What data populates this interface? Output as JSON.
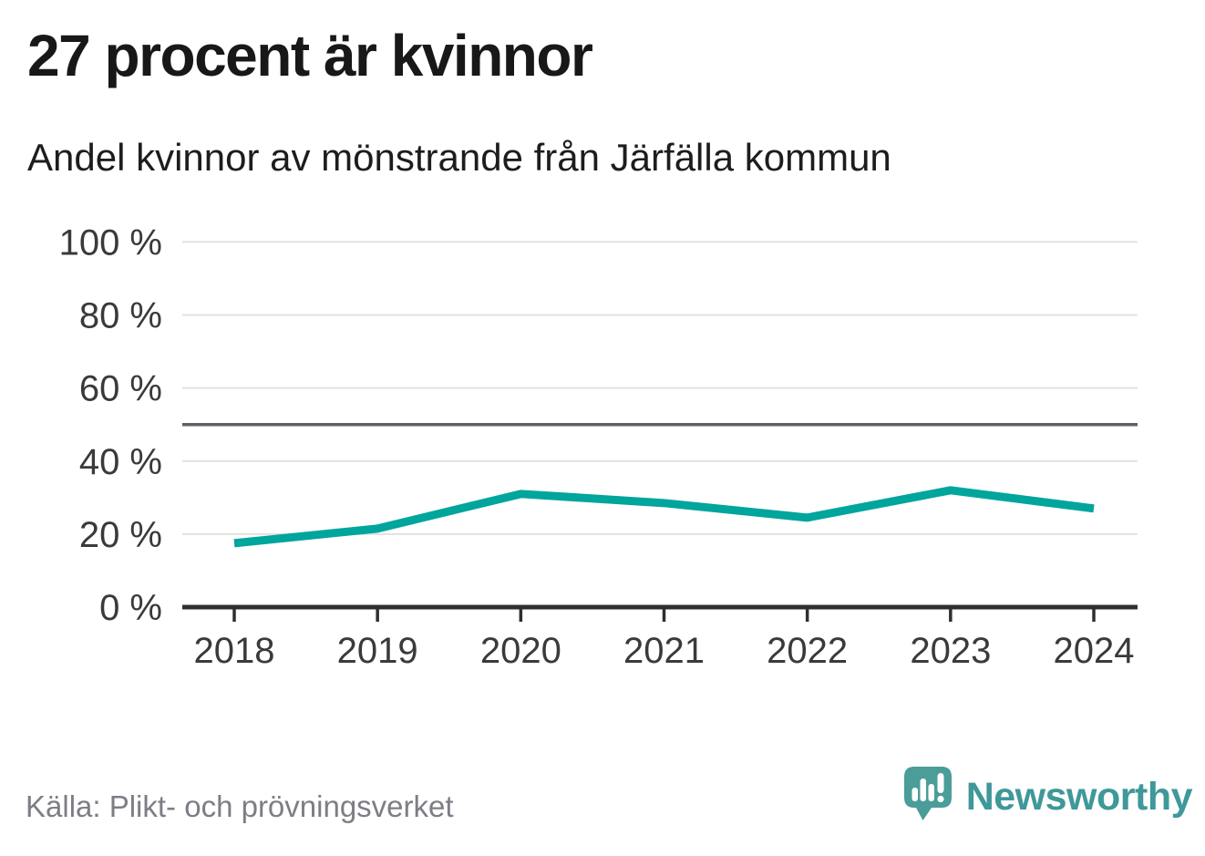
{
  "header": {
    "title": "27 procent är kvinnor",
    "subtitle": "Andel kvinnor av mönstrande från Järfälla kommun"
  },
  "chart_data": {
    "type": "line",
    "title": "27 procent är kvinnor",
    "subtitle": "Andel kvinnor av mönstrande från Järfälla kommun",
    "x_labels": [
      "2018",
      "2019",
      "2020",
      "2021",
      "2022",
      "2023",
      "2024"
    ],
    "series": [
      {
        "name": "Andel kvinnor av mönstrande",
        "values": [
          17.5,
          21.5,
          31,
          28.5,
          24.5,
          32,
          27
        ]
      }
    ],
    "ylim": [
      0,
      100
    ],
    "y_ticks": [
      {
        "value": 0,
        "label": "0 %"
      },
      {
        "value": 20,
        "label": "20 %"
      },
      {
        "value": 40,
        "label": "40 %"
      },
      {
        "value": 60,
        "label": "60 %"
      },
      {
        "value": 80,
        "label": "80 %"
      },
      {
        "value": 100,
        "label": "100 %"
      }
    ],
    "reference_line": {
      "value": 50
    },
    "grid": "horizontal",
    "legend": "none",
    "line_color": "#00a59c",
    "grid_color": "#e1e1e1",
    "reference_color": "#5f5f66",
    "axis_line_color": "#2f2f2f",
    "tick_label_color": "#3a3a3a"
  },
  "footer": {
    "source": "Källa: Plikt- och prövningsverket",
    "brand": "Newsworthy",
    "brand_color": "#3f9899",
    "brand_icon_color": "#4a9d99"
  }
}
